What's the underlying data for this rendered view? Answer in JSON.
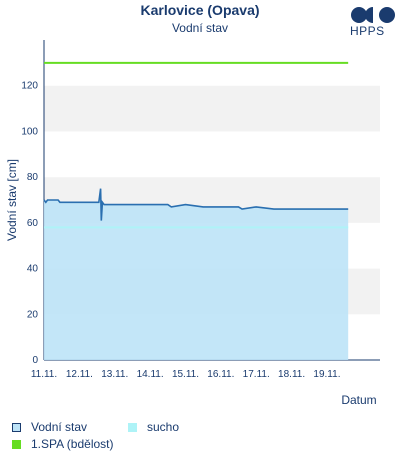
{
  "header": {
    "title": "Karlovice (Opava)",
    "subtitle": "Vodní stav",
    "logo_text": "HPPS"
  },
  "legend": {
    "items": [
      {
        "label": "Vodní stav",
        "color": "#bde3f7",
        "border": "#1a3b6e"
      },
      {
        "label": "sucho",
        "color": "#aef3f7",
        "border": "#aef3f7"
      },
      {
        "label": "1.SPA (bdělost)",
        "color": "#66dd22",
        "border": "#66dd22"
      }
    ]
  },
  "chart_data": {
    "type": "area",
    "title": "Karlovice (Opava)",
    "subtitle": "Vodní stav",
    "xlabel": "Datum",
    "ylabel": "Vodní stav [cm]",
    "ylim": [
      0,
      140
    ],
    "yticks": [
      0,
      20,
      40,
      60,
      80,
      100,
      120
    ],
    "xlim": [
      0,
      9.5
    ],
    "xticks": [
      "11.11.",
      "12.11.",
      "13.11.",
      "14.11.",
      "15.11.",
      "16.11.",
      "17.11.",
      "18.11.",
      "19.11."
    ],
    "grid": "alternating horizontal bands",
    "colors": {
      "series_line": "#2a6fb0",
      "series_fill": "#bde3f7",
      "drought": "#aef3f7",
      "spa1": "#66dd22"
    },
    "series": [
      {
        "name": "Vodní stav",
        "x": [
          0.0,
          0.05,
          0.1,
          0.4,
          0.45,
          1.4,
          1.55,
          1.6,
          1.62,
          1.65,
          1.7,
          1.75,
          1.8,
          2.5,
          3.0,
          3.5,
          3.6,
          4.0,
          4.5,
          4.8,
          5.0,
          5.5,
          5.6,
          6.0,
          6.5,
          7.0,
          7.5,
          8.0,
          8.5,
          8.6
        ],
        "y": [
          70,
          69,
          70,
          70,
          69,
          69,
          69,
          75,
          61,
          69,
          68,
          68,
          68,
          68,
          68,
          68,
          67,
          68,
          67,
          67,
          67,
          67,
          66,
          67,
          66,
          66,
          66,
          66,
          66,
          66
        ]
      },
      {
        "name": "sucho",
        "x": [
          0.0,
          8.6
        ],
        "y": [
          58,
          58
        ]
      },
      {
        "name": "1.SPA (bdělost)",
        "x": [
          0.0,
          8.6
        ],
        "y": [
          130,
          130
        ]
      }
    ]
  }
}
